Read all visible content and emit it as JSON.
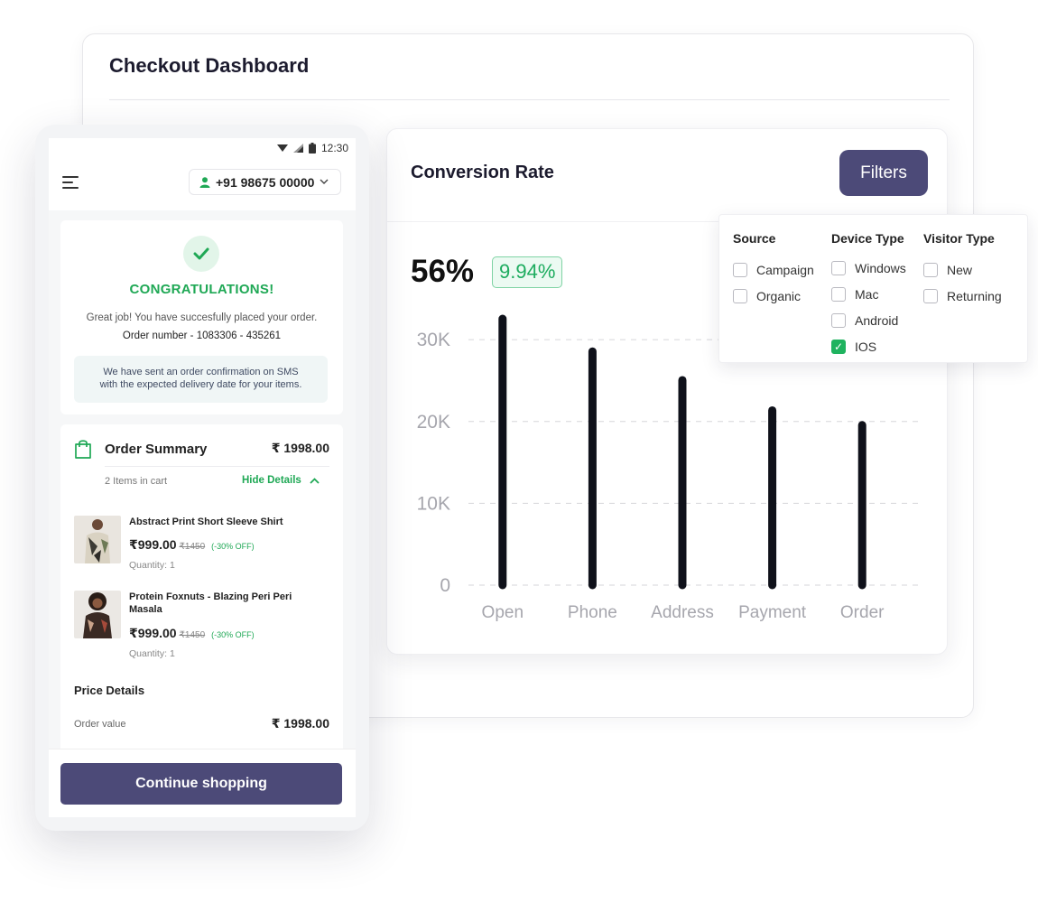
{
  "dashboard": {
    "title": "Checkout Dashboard"
  },
  "conversion": {
    "title": "Conversion Rate",
    "filters_label": "Filters",
    "rate": "56%",
    "change": "9.94%"
  },
  "filters": {
    "source": {
      "heading": "Source",
      "options": [
        {
          "label": "Campaign",
          "checked": false
        },
        {
          "label": "Organic",
          "checked": false
        }
      ]
    },
    "device": {
      "heading": "Device Type",
      "options": [
        {
          "label": "Windows",
          "checked": false
        },
        {
          "label": "Mac",
          "checked": false
        },
        {
          "label": "Android",
          "checked": false
        },
        {
          "label": "IOS",
          "checked": true
        }
      ]
    },
    "visitor": {
      "heading": "Visitor Type",
      "options": [
        {
          "label": "New",
          "checked": false
        },
        {
          "label": "Returning",
          "checked": false
        }
      ]
    }
  },
  "chart_data": {
    "type": "bar",
    "categories": [
      "Open",
      "Phone",
      "Address",
      "Payment",
      "Order"
    ],
    "values": [
      33000,
      29000,
      25500,
      21800,
      20000
    ],
    "ytick_labels": [
      "0",
      "10K",
      "20K",
      "30K"
    ],
    "yticks": [
      0,
      10000,
      20000,
      30000
    ],
    "ylim": [
      0,
      33000
    ],
    "grid": true,
    "bar_color": "#0f111a"
  },
  "phone": {
    "status_time": "12:30",
    "phone_number": "+91 98675 00000",
    "congrats": "CONGRATULATIONS!",
    "great_job": "Great job! You have succesfully placed your order.",
    "order_number": "Order number - 1083306 - 435261",
    "sms_line1": "We have sent an order confirmation on SMS",
    "sms_line2": "with the expected delivery date for your items.",
    "summary": {
      "title": "Order Summary",
      "total": "₹ 1998.00",
      "items_count": "2 Items in cart",
      "hide_details": "Hide Details",
      "items": [
        {
          "name": "Abstract Print Short Sleeve Shirt",
          "price": "₹999.00",
          "old_price": "₹1450",
          "discount": "(-30% OFF)",
          "quantity": "Quantity: 1"
        },
        {
          "name": "Protein Foxnuts - Blazing Peri Peri Masala",
          "price": "₹999.00",
          "old_price": "₹1450",
          "discount": "(-30% OFF)",
          "quantity": "Quantity: 1"
        }
      ]
    },
    "price_details": {
      "title": "Price Details",
      "order_value_label": "Order value",
      "order_value": "₹ 1998.00"
    },
    "continue_label": "Continue shopping"
  },
  "colors": {
    "accent": "#4c4a78",
    "success": "#1fa855",
    "bar": "#0f111a"
  }
}
